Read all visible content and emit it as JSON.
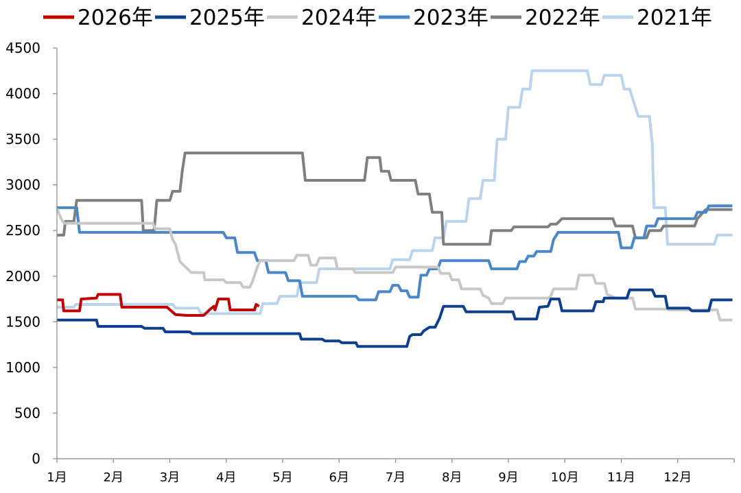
{
  "chart_data": {
    "type": "line",
    "title": "",
    "xlabel": "",
    "ylabel": "",
    "ylim": [
      0,
      4500
    ],
    "yticks": [
      0,
      500,
      1000,
      1500,
      2000,
      2500,
      3000,
      3500,
      4000,
      4500
    ],
    "xlim": [
      1,
      13
    ],
    "xticks": [
      {
        "value": 1,
        "label": "1月"
      },
      {
        "value": 2,
        "label": "2月"
      },
      {
        "value": 3,
        "label": "3月"
      },
      {
        "value": 4,
        "label": "4月"
      },
      {
        "value": 5,
        "label": "5月"
      },
      {
        "value": 6,
        "label": "6月"
      },
      {
        "value": 7,
        "label": "7月"
      },
      {
        "value": 8,
        "label": "8月"
      },
      {
        "value": 9,
        "label": "9月"
      },
      {
        "value": 10,
        "label": "10月"
      },
      {
        "value": 11,
        "label": "11月"
      },
      {
        "value": 12,
        "label": "12月"
      }
    ],
    "grid": false,
    "legend_position": "top",
    "series": [
      {
        "name": "2026年",
        "color": "#c00000",
        "points": [
          [
            1.0,
            1740
          ],
          [
            1.1,
            1740
          ],
          [
            1.12,
            1620
          ],
          [
            1.4,
            1620
          ],
          [
            1.43,
            1750
          ],
          [
            1.7,
            1760
          ],
          [
            1.73,
            1800
          ],
          [
            2.12,
            1800
          ],
          [
            2.15,
            1660
          ],
          [
            2.95,
            1660
          ],
          [
            3.1,
            1580
          ],
          [
            3.3,
            1570
          ],
          [
            3.6,
            1570
          ],
          [
            3.7,
            1630
          ],
          [
            3.78,
            1670
          ],
          [
            3.8,
            1630
          ],
          [
            3.86,
            1750
          ],
          [
            4.04,
            1750
          ],
          [
            4.07,
            1630
          ],
          [
            4.5,
            1630
          ],
          [
            4.53,
            1690
          ],
          [
            4.58,
            1670
          ]
        ]
      },
      {
        "name": "2025年",
        "color": "#0d3f8c",
        "points": [
          [
            1.0,
            1520
          ],
          [
            1.7,
            1520
          ],
          [
            1.73,
            1450
          ],
          [
            2.5,
            1450
          ],
          [
            2.55,
            1430
          ],
          [
            2.88,
            1430
          ],
          [
            2.92,
            1390
          ],
          [
            3.35,
            1390
          ],
          [
            3.4,
            1370
          ],
          [
            5.3,
            1370
          ],
          [
            5.33,
            1310
          ],
          [
            5.7,
            1310
          ],
          [
            5.75,
            1290
          ],
          [
            6.0,
            1290
          ],
          [
            6.05,
            1270
          ],
          [
            6.3,
            1270
          ],
          [
            6.33,
            1230
          ],
          [
            7.2,
            1230
          ],
          [
            7.25,
            1340
          ],
          [
            7.3,
            1360
          ],
          [
            7.45,
            1360
          ],
          [
            7.5,
            1400
          ],
          [
            7.6,
            1440
          ],
          [
            7.7,
            1440
          ],
          [
            7.78,
            1540
          ],
          [
            7.85,
            1670
          ],
          [
            8.2,
            1670
          ],
          [
            8.25,
            1610
          ],
          [
            9.08,
            1610
          ],
          [
            9.12,
            1530
          ],
          [
            9.5,
            1530
          ],
          [
            9.55,
            1660
          ],
          [
            9.7,
            1670
          ],
          [
            9.75,
            1750
          ],
          [
            9.9,
            1750
          ],
          [
            9.95,
            1620
          ],
          [
            10.5,
            1620
          ],
          [
            10.55,
            1720
          ],
          [
            10.68,
            1720
          ],
          [
            10.7,
            1760
          ],
          [
            11.1,
            1760
          ],
          [
            11.15,
            1850
          ],
          [
            11.55,
            1850
          ],
          [
            11.6,
            1780
          ],
          [
            11.78,
            1780
          ],
          [
            11.82,
            1650
          ],
          [
            12.2,
            1650
          ],
          [
            12.25,
            1620
          ],
          [
            12.55,
            1620
          ],
          [
            12.6,
            1740
          ],
          [
            12.97,
            1740
          ]
        ]
      },
      {
        "name": "2024年",
        "color": "#c8c8c8",
        "points": [
          [
            1.0,
            2740
          ],
          [
            1.08,
            2620
          ],
          [
            1.13,
            2580
          ],
          [
            2.7,
            2580
          ],
          [
            2.74,
            2520
          ],
          [
            3.0,
            2520
          ],
          [
            3.05,
            2400
          ],
          [
            3.1,
            2350
          ],
          [
            3.18,
            2160
          ],
          [
            3.28,
            2100
          ],
          [
            3.38,
            2040
          ],
          [
            3.6,
            2040
          ],
          [
            3.62,
            1960
          ],
          [
            3.95,
            1960
          ],
          [
            4.0,
            1930
          ],
          [
            4.25,
            1930
          ],
          [
            4.3,
            1880
          ],
          [
            4.42,
            1880
          ],
          [
            4.47,
            1950
          ],
          [
            4.55,
            2100
          ],
          [
            4.6,
            2170
          ],
          [
            5.2,
            2170
          ],
          [
            5.25,
            2230
          ],
          [
            5.45,
            2230
          ],
          [
            5.5,
            2120
          ],
          [
            5.6,
            2120
          ],
          [
            5.65,
            2200
          ],
          [
            5.93,
            2200
          ],
          [
            5.97,
            2080
          ],
          [
            6.25,
            2080
          ],
          [
            6.28,
            2040
          ],
          [
            6.95,
            2040
          ],
          [
            7.0,
            2100
          ],
          [
            7.75,
            2100
          ],
          [
            7.8,
            2030
          ],
          [
            7.95,
            2030
          ],
          [
            8.0,
            1960
          ],
          [
            8.12,
            1960
          ],
          [
            8.17,
            1860
          ],
          [
            8.5,
            1860
          ],
          [
            8.55,
            1790
          ],
          [
            8.65,
            1760
          ],
          [
            8.7,
            1700
          ],
          [
            8.9,
            1700
          ],
          [
            8.95,
            1760
          ],
          [
            9.7,
            1760
          ],
          [
            9.75,
            1780
          ],
          [
            9.8,
            1860
          ],
          [
            10.2,
            1860
          ],
          [
            10.25,
            2010
          ],
          [
            10.5,
            2010
          ],
          [
            10.55,
            1920
          ],
          [
            10.7,
            1920
          ],
          [
            10.75,
            1800
          ],
          [
            10.9,
            1760
          ],
          [
            11.2,
            1760
          ],
          [
            11.25,
            1640
          ],
          [
            11.8,
            1640
          ],
          [
            11.85,
            1630
          ],
          [
            12.7,
            1630
          ],
          [
            12.75,
            1520
          ],
          [
            12.97,
            1520
          ]
        ]
      },
      {
        "name": "2023年",
        "color": "#4a86c8",
        "points": [
          [
            1.0,
            2750
          ],
          [
            1.35,
            2750
          ],
          [
            1.4,
            2480
          ],
          [
            3.95,
            2480
          ],
          [
            4.0,
            2420
          ],
          [
            4.15,
            2420
          ],
          [
            4.2,
            2260
          ],
          [
            4.5,
            2260
          ],
          [
            4.55,
            2170
          ],
          [
            4.7,
            2170
          ],
          [
            4.75,
            2040
          ],
          [
            5.05,
            2040
          ],
          [
            5.1,
            1950
          ],
          [
            5.3,
            1950
          ],
          [
            5.35,
            1780
          ],
          [
            6.3,
            1780
          ],
          [
            6.35,
            1740
          ],
          [
            6.65,
            1740
          ],
          [
            6.7,
            1830
          ],
          [
            6.9,
            1830
          ],
          [
            6.95,
            1900
          ],
          [
            7.05,
            1900
          ],
          [
            7.1,
            1840
          ],
          [
            7.2,
            1840
          ],
          [
            7.25,
            1770
          ],
          [
            7.4,
            1770
          ],
          [
            7.45,
            2010
          ],
          [
            7.55,
            2010
          ],
          [
            7.6,
            2080
          ],
          [
            7.75,
            2080
          ],
          [
            7.8,
            2170
          ],
          [
            8.65,
            2170
          ],
          [
            8.7,
            2080
          ],
          [
            9.15,
            2080
          ],
          [
            9.2,
            2160
          ],
          [
            9.3,
            2160
          ],
          [
            9.35,
            2220
          ],
          [
            9.45,
            2220
          ],
          [
            9.5,
            2270
          ],
          [
            9.75,
            2270
          ],
          [
            9.8,
            2400
          ],
          [
            9.88,
            2480
          ],
          [
            10.95,
            2480
          ],
          [
            11.0,
            2310
          ],
          [
            11.18,
            2310
          ],
          [
            11.23,
            2420
          ],
          [
            11.4,
            2420
          ],
          [
            11.45,
            2550
          ],
          [
            11.6,
            2550
          ],
          [
            11.65,
            2630
          ],
          [
            12.3,
            2630
          ],
          [
            12.35,
            2700
          ],
          [
            12.5,
            2700
          ],
          [
            12.55,
            2770
          ],
          [
            12.97,
            2770
          ]
        ]
      },
      {
        "name": "2022年",
        "color": "#7f7f7f",
        "points": [
          [
            1.0,
            2450
          ],
          [
            1.12,
            2450
          ],
          [
            1.15,
            2600
          ],
          [
            1.3,
            2600
          ],
          [
            1.35,
            2830
          ],
          [
            2.5,
            2830
          ],
          [
            2.53,
            2500
          ],
          [
            2.72,
            2500
          ],
          [
            2.77,
            2830
          ],
          [
            3.0,
            2830
          ],
          [
            3.05,
            2930
          ],
          [
            3.18,
            2930
          ],
          [
            3.22,
            3150
          ],
          [
            3.27,
            3350
          ],
          [
            5.35,
            3350
          ],
          [
            5.4,
            3050
          ],
          [
            6.45,
            3050
          ],
          [
            6.5,
            3300
          ],
          [
            6.72,
            3300
          ],
          [
            6.75,
            3150
          ],
          [
            6.88,
            3150
          ],
          [
            6.92,
            3050
          ],
          [
            7.35,
            3050
          ],
          [
            7.4,
            2900
          ],
          [
            7.6,
            2900
          ],
          [
            7.65,
            2700
          ],
          [
            7.82,
            2700
          ],
          [
            7.85,
            2350
          ],
          [
            8.67,
            2350
          ],
          [
            8.7,
            2500
          ],
          [
            9.05,
            2500
          ],
          [
            9.1,
            2540
          ],
          [
            9.7,
            2540
          ],
          [
            9.75,
            2570
          ],
          [
            9.85,
            2570
          ],
          [
            9.9,
            2600
          ],
          [
            9.95,
            2630
          ],
          [
            10.85,
            2630
          ],
          [
            10.9,
            2550
          ],
          [
            11.2,
            2550
          ],
          [
            11.25,
            2420
          ],
          [
            11.45,
            2420
          ],
          [
            11.5,
            2500
          ],
          [
            11.7,
            2500
          ],
          [
            11.75,
            2550
          ],
          [
            12.3,
            2550
          ],
          [
            12.35,
            2630
          ],
          [
            12.45,
            2700
          ],
          [
            12.5,
            2730
          ],
          [
            12.97,
            2730
          ]
        ]
      },
      {
        "name": "2021年",
        "color": "#bcd3ec",
        "points": [
          [
            1.0,
            1660
          ],
          [
            1.3,
            1660
          ],
          [
            1.33,
            1690
          ],
          [
            3.05,
            1690
          ],
          [
            3.1,
            1650
          ],
          [
            3.5,
            1650
          ],
          [
            3.55,
            1590
          ],
          [
            4.6,
            1590
          ],
          [
            4.65,
            1700
          ],
          [
            4.9,
            1700
          ],
          [
            4.95,
            1780
          ],
          [
            5.25,
            1780
          ],
          [
            5.3,
            1930
          ],
          [
            5.6,
            1930
          ],
          [
            5.65,
            2080
          ],
          [
            6.9,
            2080
          ],
          [
            6.95,
            2180
          ],
          [
            7.25,
            2180
          ],
          [
            7.3,
            2280
          ],
          [
            7.65,
            2280
          ],
          [
            7.7,
            2420
          ],
          [
            7.85,
            2420
          ],
          [
            7.9,
            2600
          ],
          [
            8.25,
            2600
          ],
          [
            8.3,
            2850
          ],
          [
            8.5,
            2850
          ],
          [
            8.55,
            3050
          ],
          [
            8.75,
            3050
          ],
          [
            8.8,
            3500
          ],
          [
            8.95,
            3500
          ],
          [
            9.0,
            3850
          ],
          [
            9.2,
            3850
          ],
          [
            9.25,
            4050
          ],
          [
            9.38,
            4050
          ],
          [
            9.42,
            4250
          ],
          [
            10.4,
            4250
          ],
          [
            10.45,
            4100
          ],
          [
            10.65,
            4100
          ],
          [
            10.7,
            4200
          ],
          [
            11.0,
            4200
          ],
          [
            11.05,
            4050
          ],
          [
            11.15,
            4050
          ],
          [
            11.2,
            3950
          ],
          [
            11.3,
            3750
          ],
          [
            11.5,
            3750
          ],
          [
            11.55,
            3450
          ],
          [
            11.58,
            2750
          ],
          [
            11.78,
            2750
          ],
          [
            11.82,
            2350
          ],
          [
            12.65,
            2350
          ],
          [
            12.7,
            2450
          ],
          [
            12.97,
            2450
          ]
        ]
      }
    ]
  }
}
